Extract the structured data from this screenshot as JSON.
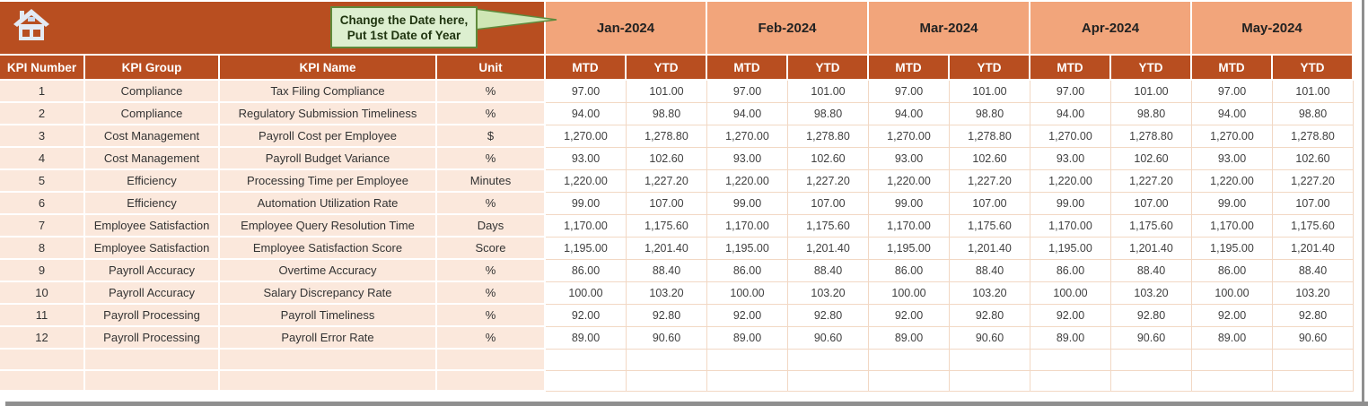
{
  "callout": {
    "line1": "Change the Date here,",
    "line2": "Put 1st Date of Year"
  },
  "header": {
    "months": [
      "Jan-2024",
      "Feb-2024",
      "Mar-2024",
      "Apr-2024",
      "May-2024"
    ],
    "sub_columns": [
      "MTD",
      "YTD"
    ],
    "left_columns": [
      "KPI Number",
      "KPI Group",
      "KPI Name",
      "Unit"
    ]
  },
  "table": {
    "rows": [
      {
        "number": "1",
        "group": "Compliance",
        "name": "Tax Filing Compliance",
        "unit": "%",
        "mtd": "97.00",
        "ytd": "101.00"
      },
      {
        "number": "2",
        "group": "Compliance",
        "name": "Regulatory Submission Timeliness",
        "unit": "%",
        "mtd": "94.00",
        "ytd": "98.80"
      },
      {
        "number": "3",
        "group": "Cost Management",
        "name": "Payroll Cost per Employee",
        "unit": "$",
        "mtd": "1,270.00",
        "ytd": "1,278.80"
      },
      {
        "number": "4",
        "group": "Cost Management",
        "name": "Payroll Budget Variance",
        "unit": "%",
        "mtd": "93.00",
        "ytd": "102.60"
      },
      {
        "number": "5",
        "group": "Efficiency",
        "name": "Processing Time per Employee",
        "unit": "Minutes",
        "mtd": "1,220.00",
        "ytd": "1,227.20"
      },
      {
        "number": "6",
        "group": "Efficiency",
        "name": "Automation Utilization Rate",
        "unit": "%",
        "mtd": "99.00",
        "ytd": "107.00"
      },
      {
        "number": "7",
        "group": "Employee Satisfaction",
        "name": "Employee Query Resolution Time",
        "unit": "Days",
        "mtd": "1,170.00",
        "ytd": "1,175.60"
      },
      {
        "number": "8",
        "group": "Employee Satisfaction",
        "name": "Employee Satisfaction Score",
        "unit": "Score",
        "mtd": "1,195.00",
        "ytd": "1,201.40"
      },
      {
        "number": "9",
        "group": "Payroll Accuracy",
        "name": "Overtime Accuracy",
        "unit": "%",
        "mtd": "86.00",
        "ytd": "88.40"
      },
      {
        "number": "10",
        "group": "Payroll Accuracy",
        "name": "Salary Discrepancy Rate",
        "unit": "%",
        "mtd": "100.00",
        "ytd": "103.20"
      },
      {
        "number": "11",
        "group": "Payroll Processing",
        "name": "Payroll Timeliness",
        "unit": "%",
        "mtd": "92.00",
        "ytd": "92.80"
      },
      {
        "number": "12",
        "group": "Payroll Processing",
        "name": "Payroll Error Rate",
        "unit": "%",
        "mtd": "89.00",
        "ytd": "90.60"
      }
    ],
    "empty_row_count": 2
  },
  "icons": {
    "home": "home-icon"
  },
  "colors": {
    "header_orange": "#B84E20",
    "month_salmon": "#F2A57B",
    "row_pink": "#FBE8DC",
    "gridline_peach": "#F2D8C4",
    "callout_fill": "#DDEFD0",
    "callout_border": "#5F8A3C",
    "edge_gray": "#8F8F8F"
  }
}
